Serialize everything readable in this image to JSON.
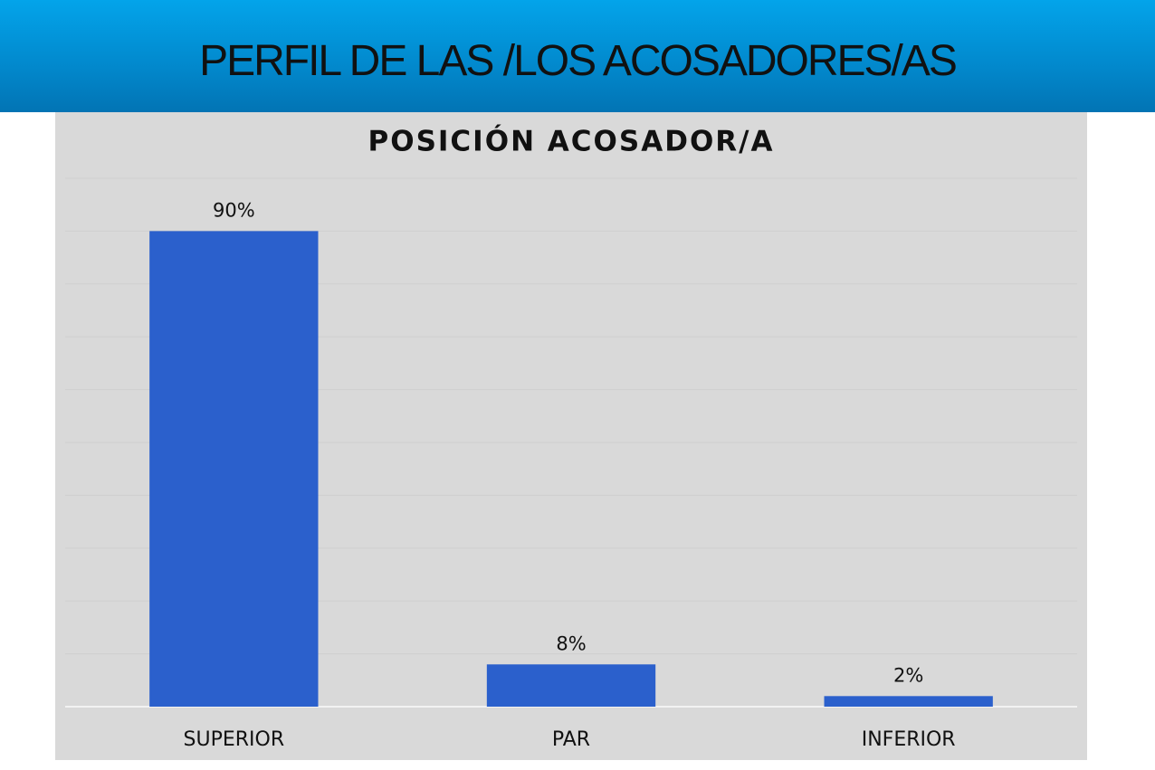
{
  "header": {
    "title": "PERFIL DE LAS /LOS ACOSADORES/AS"
  },
  "chart_data": {
    "type": "bar",
    "title": "POSICIÓN ACOSADOR/A",
    "categories": [
      "SUPERIOR",
      "PAR",
      "INFERIOR"
    ],
    "values": [
      90,
      8,
      2
    ],
    "value_labels": [
      "90%",
      "8%",
      "2%"
    ],
    "color": "#2b60cc",
    "ylim": [
      0,
      100
    ],
    "yticks": [
      0,
      10,
      20,
      30,
      40,
      50,
      60,
      70,
      80,
      90,
      100
    ],
    "grid": true
  }
}
